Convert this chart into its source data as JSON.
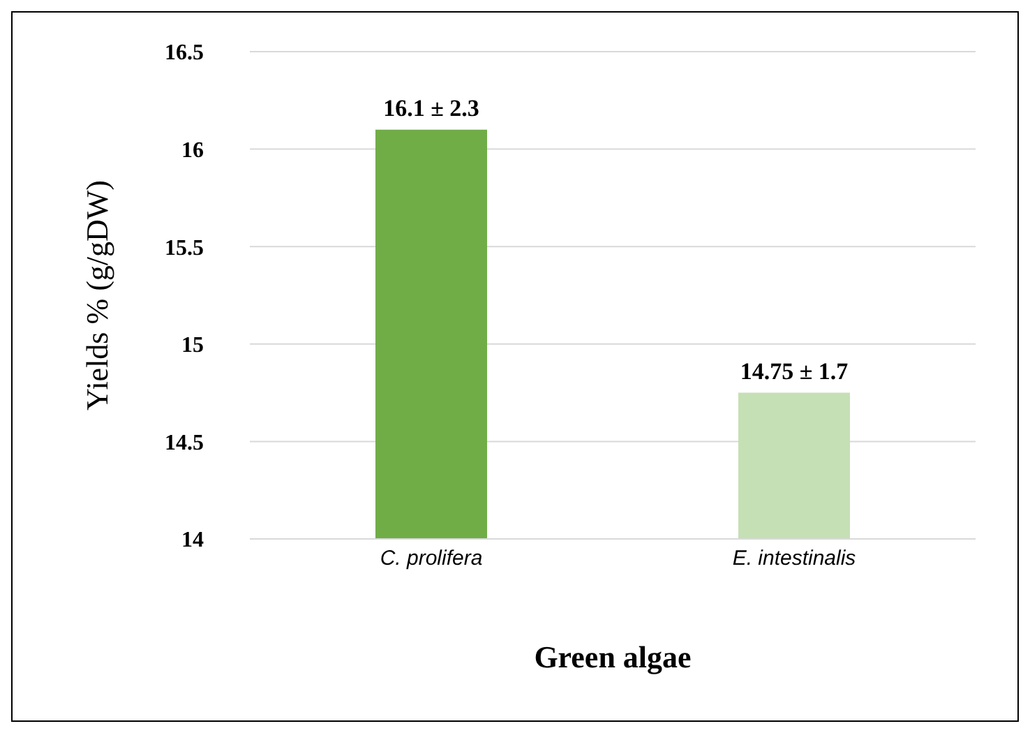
{
  "chart_data": {
    "type": "bar",
    "xlabel": "Green algae",
    "ylabel": "Yields % (g/gDW)",
    "categories": [
      "C. prolifera",
      "E. intestinalis"
    ],
    "values": [
      16.1,
      14.75
    ],
    "colors": [
      "#70ad47",
      "#c5e0b4"
    ],
    "value_labels": [
      "16.1 ± 2.3",
      "14.75 ± 1.7"
    ],
    "ylim": [
      14,
      16.5
    ],
    "yticks": [
      14,
      14.5,
      15,
      15.5,
      16,
      16.5
    ],
    "grid": "y"
  }
}
